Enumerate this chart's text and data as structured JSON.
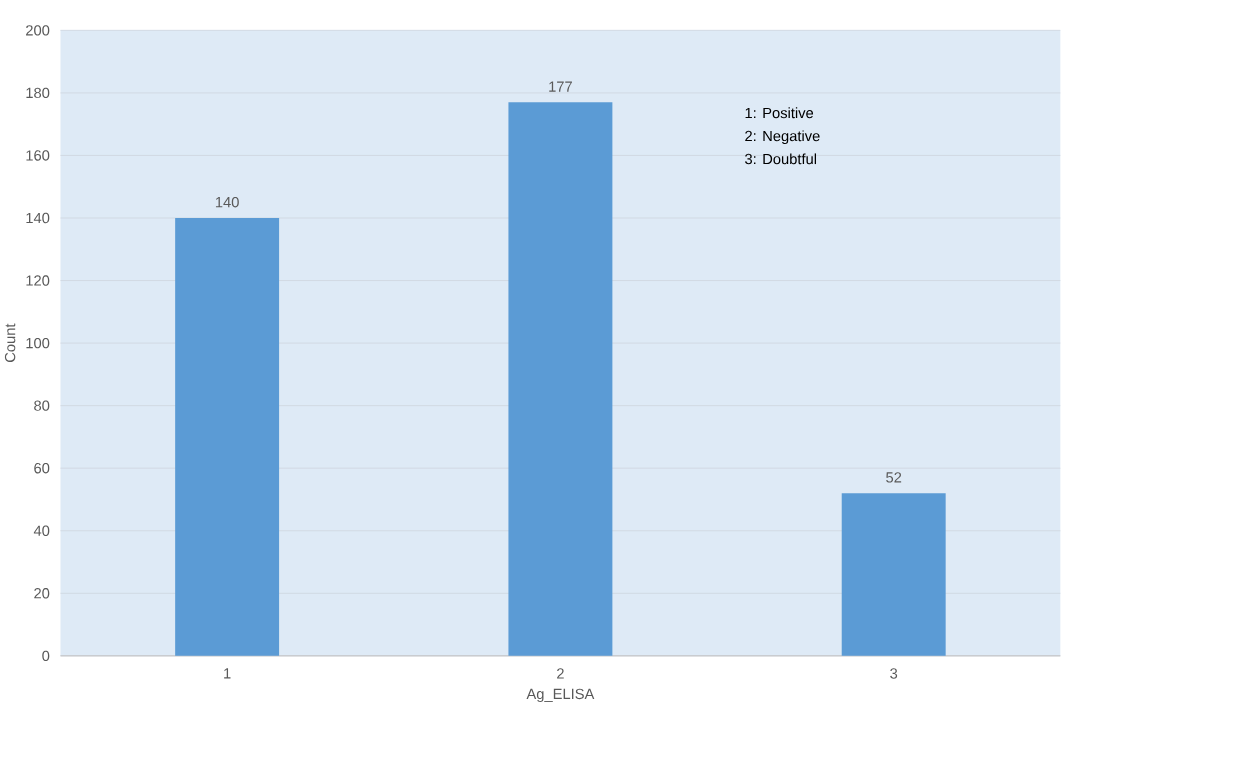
{
  "chart_data": {
    "type": "bar",
    "categories": [
      "1",
      "2",
      "3"
    ],
    "values": [
      140,
      177,
      52
    ],
    "color": "#5b9bd5",
    "xlabel": "Ag_ELISA",
    "ylabel": "Count",
    "ylim": [
      0,
      200
    ],
    "yticks": [
      0,
      20,
      40,
      60,
      80,
      100,
      120,
      140,
      160,
      180,
      200
    ],
    "grid": "y",
    "data_labels": true,
    "annotations": [
      "1: Positive",
      "2: Negative",
      "3: Doubtful"
    ]
  }
}
